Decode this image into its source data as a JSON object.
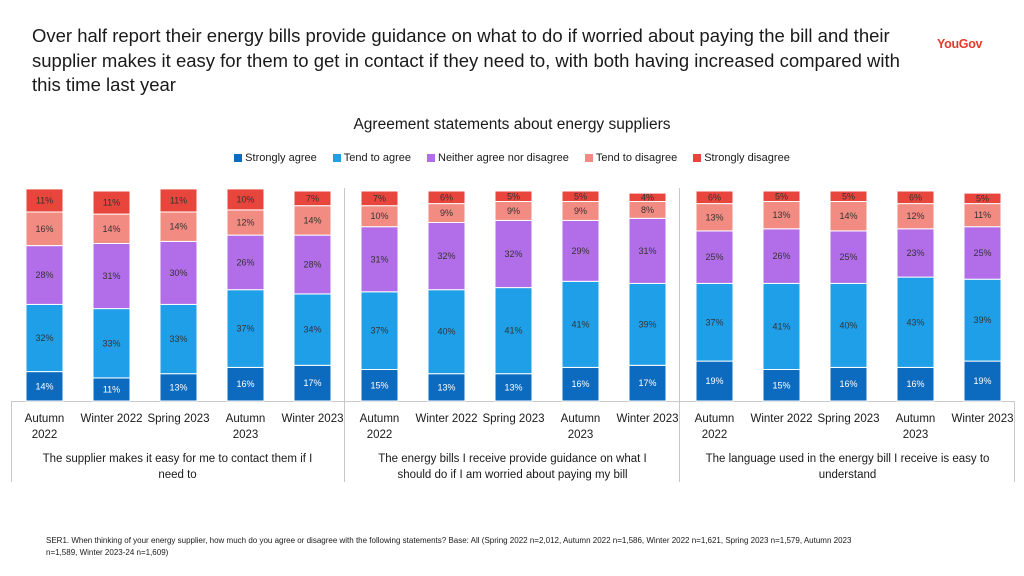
{
  "header": {
    "title": "Over half report their energy bills provide guidance on what to do if worried about paying the bill and their supplier makes it easy for them to get in contact if they need to, with both having increased compared with this time last year",
    "logo": "YouGov"
  },
  "footnote": "SER1. When thinking of your energy supplier, how much do you agree or disagree with the following statements? Base: All (Spring 2022 n=2,012, Autumn 2022 n=1,586, Winter 2022 n=1,621, Spring 2023 n=1,579, Autumn 2023 n=1,589, Winter 2023-24 n=1,609)",
  "chart_data": {
    "type": "bar",
    "stacked": true,
    "title": "Agreement statements about energy suppliers",
    "legend_position": "top",
    "grid": false,
    "ylim": [
      0,
      100
    ],
    "series_colors": [
      "#0d6bbf",
      "#1f9fe8",
      "#b16ee8",
      "#f28b82",
      "#e8453c"
    ],
    "series_names": [
      "Strongly agree",
      "Tend to agree",
      "Neither agree nor disagree",
      "Tend to disagree",
      "Strongly disagree"
    ],
    "groups": [
      {
        "label": "The supplier makes it easy for me to contact them if I need to",
        "categories": [
          [
            "Autumn",
            "2022"
          ],
          [
            "Winter 2022"
          ],
          [
            "Spring 2023"
          ],
          [
            "Autumn",
            "2023"
          ],
          [
            "Winter 2023"
          ]
        ],
        "series": [
          {
            "name": "Strongly agree",
            "values": [
              14,
              11,
              13,
              16,
              17
            ]
          },
          {
            "name": "Tend to agree",
            "values": [
              32,
              33,
              33,
              37,
              34
            ]
          },
          {
            "name": "Neither agree nor disagree",
            "values": [
              28,
              31,
              30,
              26,
              28
            ]
          },
          {
            "name": "Tend to disagree",
            "values": [
              16,
              14,
              14,
              12,
              14
            ]
          },
          {
            "name": "Strongly disagree",
            "values": [
              11,
              11,
              11,
              10,
              7
            ]
          }
        ]
      },
      {
        "label": "The energy bills I receive provide guidance on what I should do if I am worried about paying my bill",
        "categories": [
          [
            "Autumn",
            "2022"
          ],
          [
            "Winter 2022"
          ],
          [
            "Spring 2023"
          ],
          [
            "Autumn",
            "2023"
          ],
          [
            "Winter 2023"
          ]
        ],
        "series": [
          {
            "name": "Strongly agree",
            "values": [
              15,
              13,
              13,
              16,
              17
            ]
          },
          {
            "name": "Tend to agree",
            "values": [
              37,
              40,
              41,
              41,
              39
            ]
          },
          {
            "name": "Neither agree nor disagree",
            "values": [
              31,
              32,
              32,
              29,
              31
            ]
          },
          {
            "name": "Tend to disagree",
            "values": [
              10,
              9,
              9,
              9,
              8
            ]
          },
          {
            "name": "Strongly disagree",
            "values": [
              7,
              6,
              5,
              5,
              4
            ]
          }
        ]
      },
      {
        "label": "The language used in the energy bill I receive is easy to understand",
        "categories": [
          [
            "Autumn",
            "2022"
          ],
          [
            "Winter 2022"
          ],
          [
            "Spring 2023"
          ],
          [
            "Autumn",
            "2023"
          ],
          [
            "Winter 2023"
          ]
        ],
        "series": [
          {
            "name": "Strongly agree",
            "values": [
              19,
              15,
              16,
              16,
              19
            ]
          },
          {
            "name": "Tend to agree",
            "values": [
              37,
              41,
              40,
              43,
              39
            ]
          },
          {
            "name": "Neither agree nor disagree",
            "values": [
              25,
              26,
              25,
              23,
              25
            ]
          },
          {
            "name": "Tend to disagree",
            "values": [
              13,
              13,
              14,
              12,
              11
            ]
          },
          {
            "name": "Strongly disagree",
            "values": [
              6,
              5,
              5,
              6,
              5
            ]
          }
        ]
      }
    ]
  }
}
